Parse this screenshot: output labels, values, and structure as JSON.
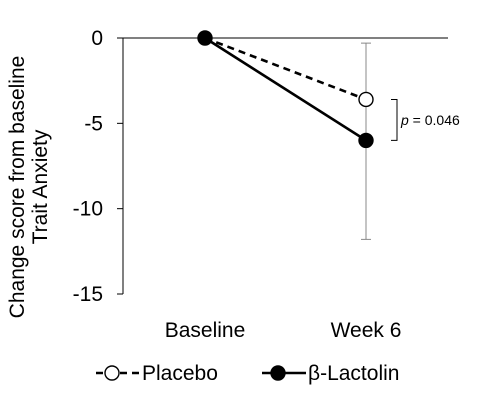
{
  "chart_data": {
    "type": "line",
    "title": "",
    "xlabel": "",
    "ylabel_lines": [
      "Change score from baseline",
      "Trait Anxiety"
    ],
    "categories": [
      "Baseline",
      "Week 6"
    ],
    "ylim": [
      -15,
      0
    ],
    "yticks": [
      0,
      -5,
      -10,
      -15
    ],
    "ytick_labels": [
      "0",
      "-5",
      "-10",
      "-15"
    ],
    "grid": false,
    "legend_position": "bottom",
    "series": [
      {
        "name": "Placebo",
        "values": [
          0,
          -3.6
        ],
        "error_upper": [
          null,
          3.3
        ],
        "error_lower": [
          null,
          8.2
        ],
        "line_style": "dashed",
        "marker": "open-circle",
        "color": "#000000"
      },
      {
        "name": "β-Lactolin",
        "values": [
          0,
          -6.0
        ],
        "line_style": "solid",
        "marker": "filled-circle",
        "color": "#000000"
      }
    ],
    "annotations": [
      {
        "italic_part": "p",
        "rest": " = 0.046",
        "between_series": [
          "Placebo",
          "β-Lactolin"
        ],
        "at_category": "Week 6"
      }
    ]
  }
}
